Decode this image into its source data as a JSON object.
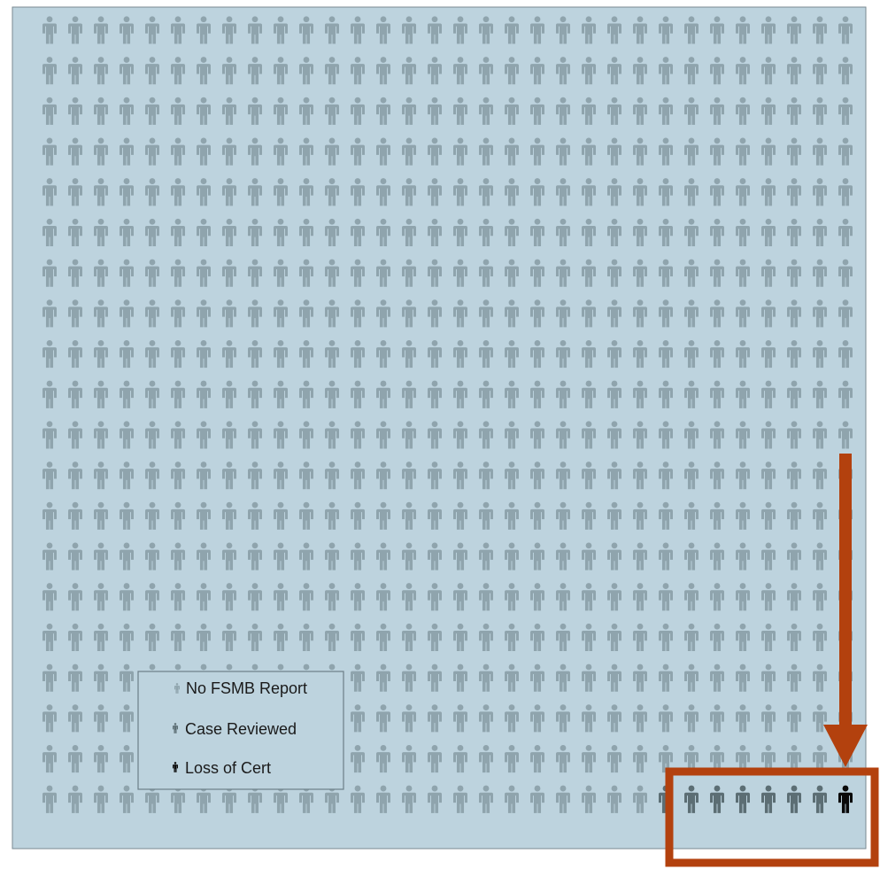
{
  "chart_data": {
    "type": "pictogram",
    "grid_rows": 20,
    "grid_cols": 32,
    "categories": [
      "No FSMB Report",
      "Case Reviewed",
      "Loss of Cert"
    ],
    "counts": {
      "No FSMB Report": 632,
      "Case Reviewed": 7,
      "Loss of Cert": 1
    },
    "legend": {
      "placement": "bottom-left",
      "items": [
        {
          "label": "No FSMB Report",
          "key": "no_report"
        },
        {
          "label": "Case Reviewed",
          "key": "reviewed"
        },
        {
          "label": "Loss of Cert",
          "key": "loss"
        }
      ]
    },
    "annotation": {
      "type": "arrow-and-box",
      "highlights": [
        "Case Reviewed",
        "Loss of Cert"
      ]
    }
  },
  "colors": {
    "background": "#bdd3de",
    "no_report": "#8fa4ad",
    "reviewed": "#5c6e74",
    "loss": "#0a0a0a",
    "annotation": "#b3410e",
    "legend_border": "#6c7f88"
  },
  "icon": "person-icon"
}
